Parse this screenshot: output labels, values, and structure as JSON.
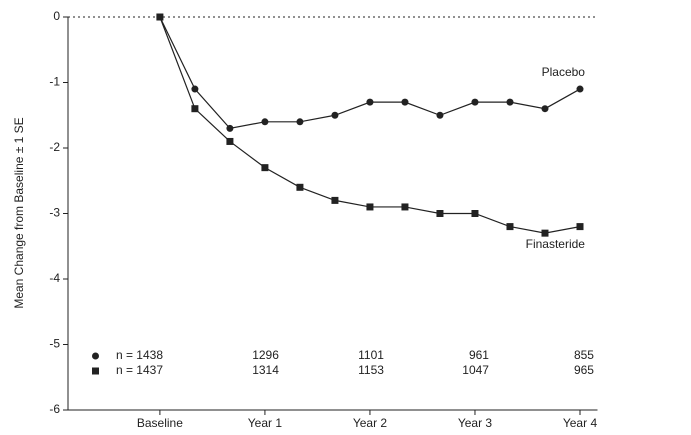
{
  "chart_data": {
    "type": "line",
    "y_label": "Mean Change from Baseline ± 1 SE",
    "x": [
      0,
      4,
      8,
      12,
      16,
      20,
      24,
      28,
      32,
      36,
      40,
      44,
      48
    ],
    "xlim": [
      -10.5,
      50
    ],
    "xticks": [
      {
        "value": 0,
        "label": "Baseline"
      },
      {
        "value": 12,
        "label": "Year 1"
      },
      {
        "value": 24,
        "label": "Year 2"
      },
      {
        "value": 36,
        "label": "Year 3"
      },
      {
        "value": 48,
        "label": "Year 4"
      }
    ],
    "ylim": [
      -6,
      0
    ],
    "yticks": [
      0,
      -1,
      -2,
      -3,
      -4,
      -5,
      -6
    ],
    "zero_line": "dashed",
    "series": [
      {
        "name": "Placebo",
        "color": "#222222",
        "marker": "circle",
        "values": [
          0,
          -1.1,
          -1.7,
          -1.6,
          -1.6,
          -1.5,
          -1.3,
          -1.3,
          -1.5,
          -1.3,
          -1.3,
          -1.4,
          -1.1
        ],
        "n_labels": [
          "n = 1438",
          "1296",
          "1101",
          "961",
          "855"
        ]
      },
      {
        "name": "Finasteride",
        "color": "#222222",
        "marker": "square",
        "values": [
          0,
          -1.4,
          -1.9,
          -2.3,
          -2.6,
          -2.8,
          -2.9,
          -2.9,
          -3.0,
          -3.0,
          -3.2,
          -3.3,
          -3.2
        ],
        "n_labels": [
          "n = 1437",
          "1314",
          "1153",
          "1047",
          "965"
        ]
      }
    ]
  }
}
